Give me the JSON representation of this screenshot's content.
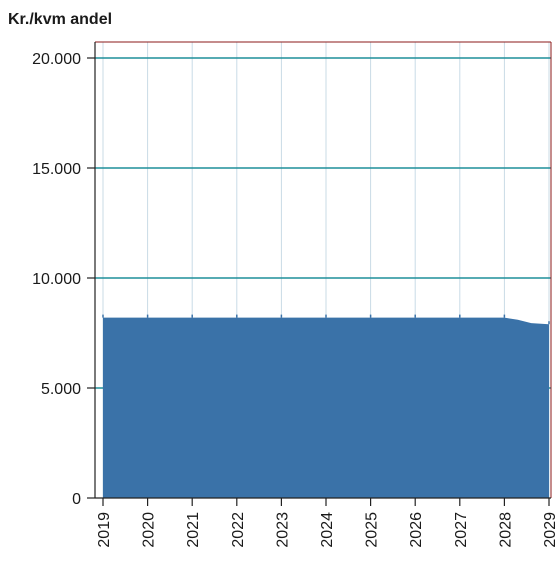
{
  "chart_data": {
    "type": "area",
    "title": "",
    "xlabel": "",
    "ylabel": "Kr./kvm andel",
    "ylim": [
      0,
      20000
    ],
    "xlim": [
      2019,
      2029
    ],
    "y_ticks": [
      0,
      5000,
      10000,
      15000,
      20000
    ],
    "y_tick_labels": [
      "0",
      "5.000",
      "10.000",
      "15.000",
      "20.000"
    ],
    "x_ticks": [
      2019,
      2020,
      2021,
      2022,
      2023,
      2024,
      2025,
      2026,
      2027,
      2028,
      2029
    ],
    "x_tick_labels": [
      "2019",
      "2020",
      "2021",
      "2022",
      "2023",
      "2024",
      "2025",
      "2026",
      "2027",
      "2028",
      "2029"
    ],
    "grid": true,
    "legend": "none",
    "series": [
      {
        "x": [
          2019,
          2019.1,
          2020,
          2021,
          2022,
          2023,
          2024,
          2025,
          2026,
          2027,
          2028,
          2028.3,
          2028.6,
          2029
        ],
        "values": [
          8200,
          8200,
          8200,
          8200,
          8200,
          8200,
          8200,
          8200,
          8200,
          8200,
          8200,
          8100,
          7950,
          7900
        ],
        "color": "#3a72a8"
      }
    ],
    "colors": {
      "area": "#3a72a8",
      "major_gridline": "#1f8f9a",
      "minor_gridline": "#c9dbe6",
      "frame": "#8b1a1a",
      "axis": "#222222"
    }
  }
}
